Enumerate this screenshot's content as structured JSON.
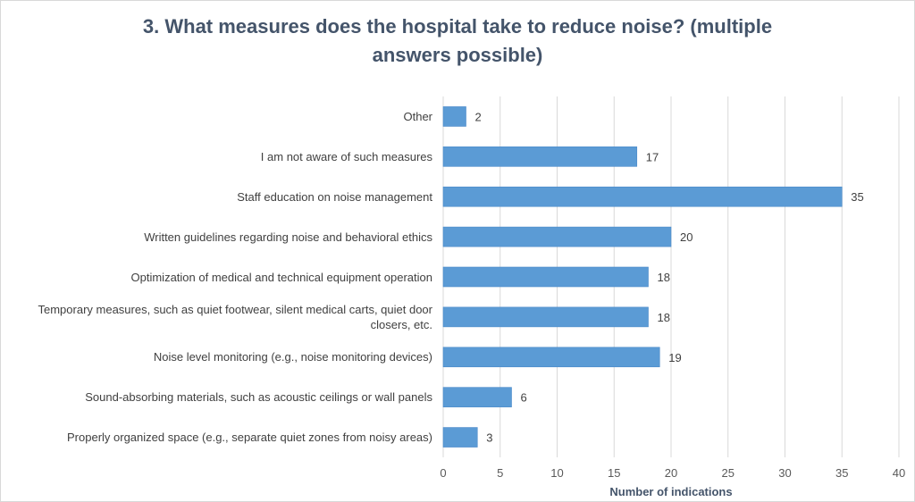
{
  "chart_data": {
    "type": "bar",
    "orientation": "horizontal",
    "title_lines": [
      "3. What measures does the hospital take to reduce noise? (multiple",
      "answers possible)"
    ],
    "xlabel": "Number of indications",
    "ylabel": "",
    "xlim": [
      0,
      40
    ],
    "xticks": [
      "0",
      "5",
      "10",
      "15",
      "20",
      "25",
      "30",
      "35",
      "40"
    ],
    "grid": "vertical",
    "legend": "none",
    "bar_color": "#5b9bd5",
    "categories": [
      "Other",
      "I am not aware of such measures",
      "Staff education on noise management",
      "Written guidelines regarding noise and behavioral ethics",
      "Optimization of medical and technical equipment operation",
      "Temporary measures, such as quiet footwear, silent medical carts, quiet door closers, etc.",
      "Noise level monitoring (e.g., noise monitoring devices)",
      "Sound-absorbing materials, such as acoustic ceilings or wall panels",
      "Properly organized space (e.g., separate quiet zones from noisy areas)"
    ],
    "values": [
      2,
      17,
      35,
      20,
      18,
      18,
      19,
      6,
      3
    ]
  }
}
